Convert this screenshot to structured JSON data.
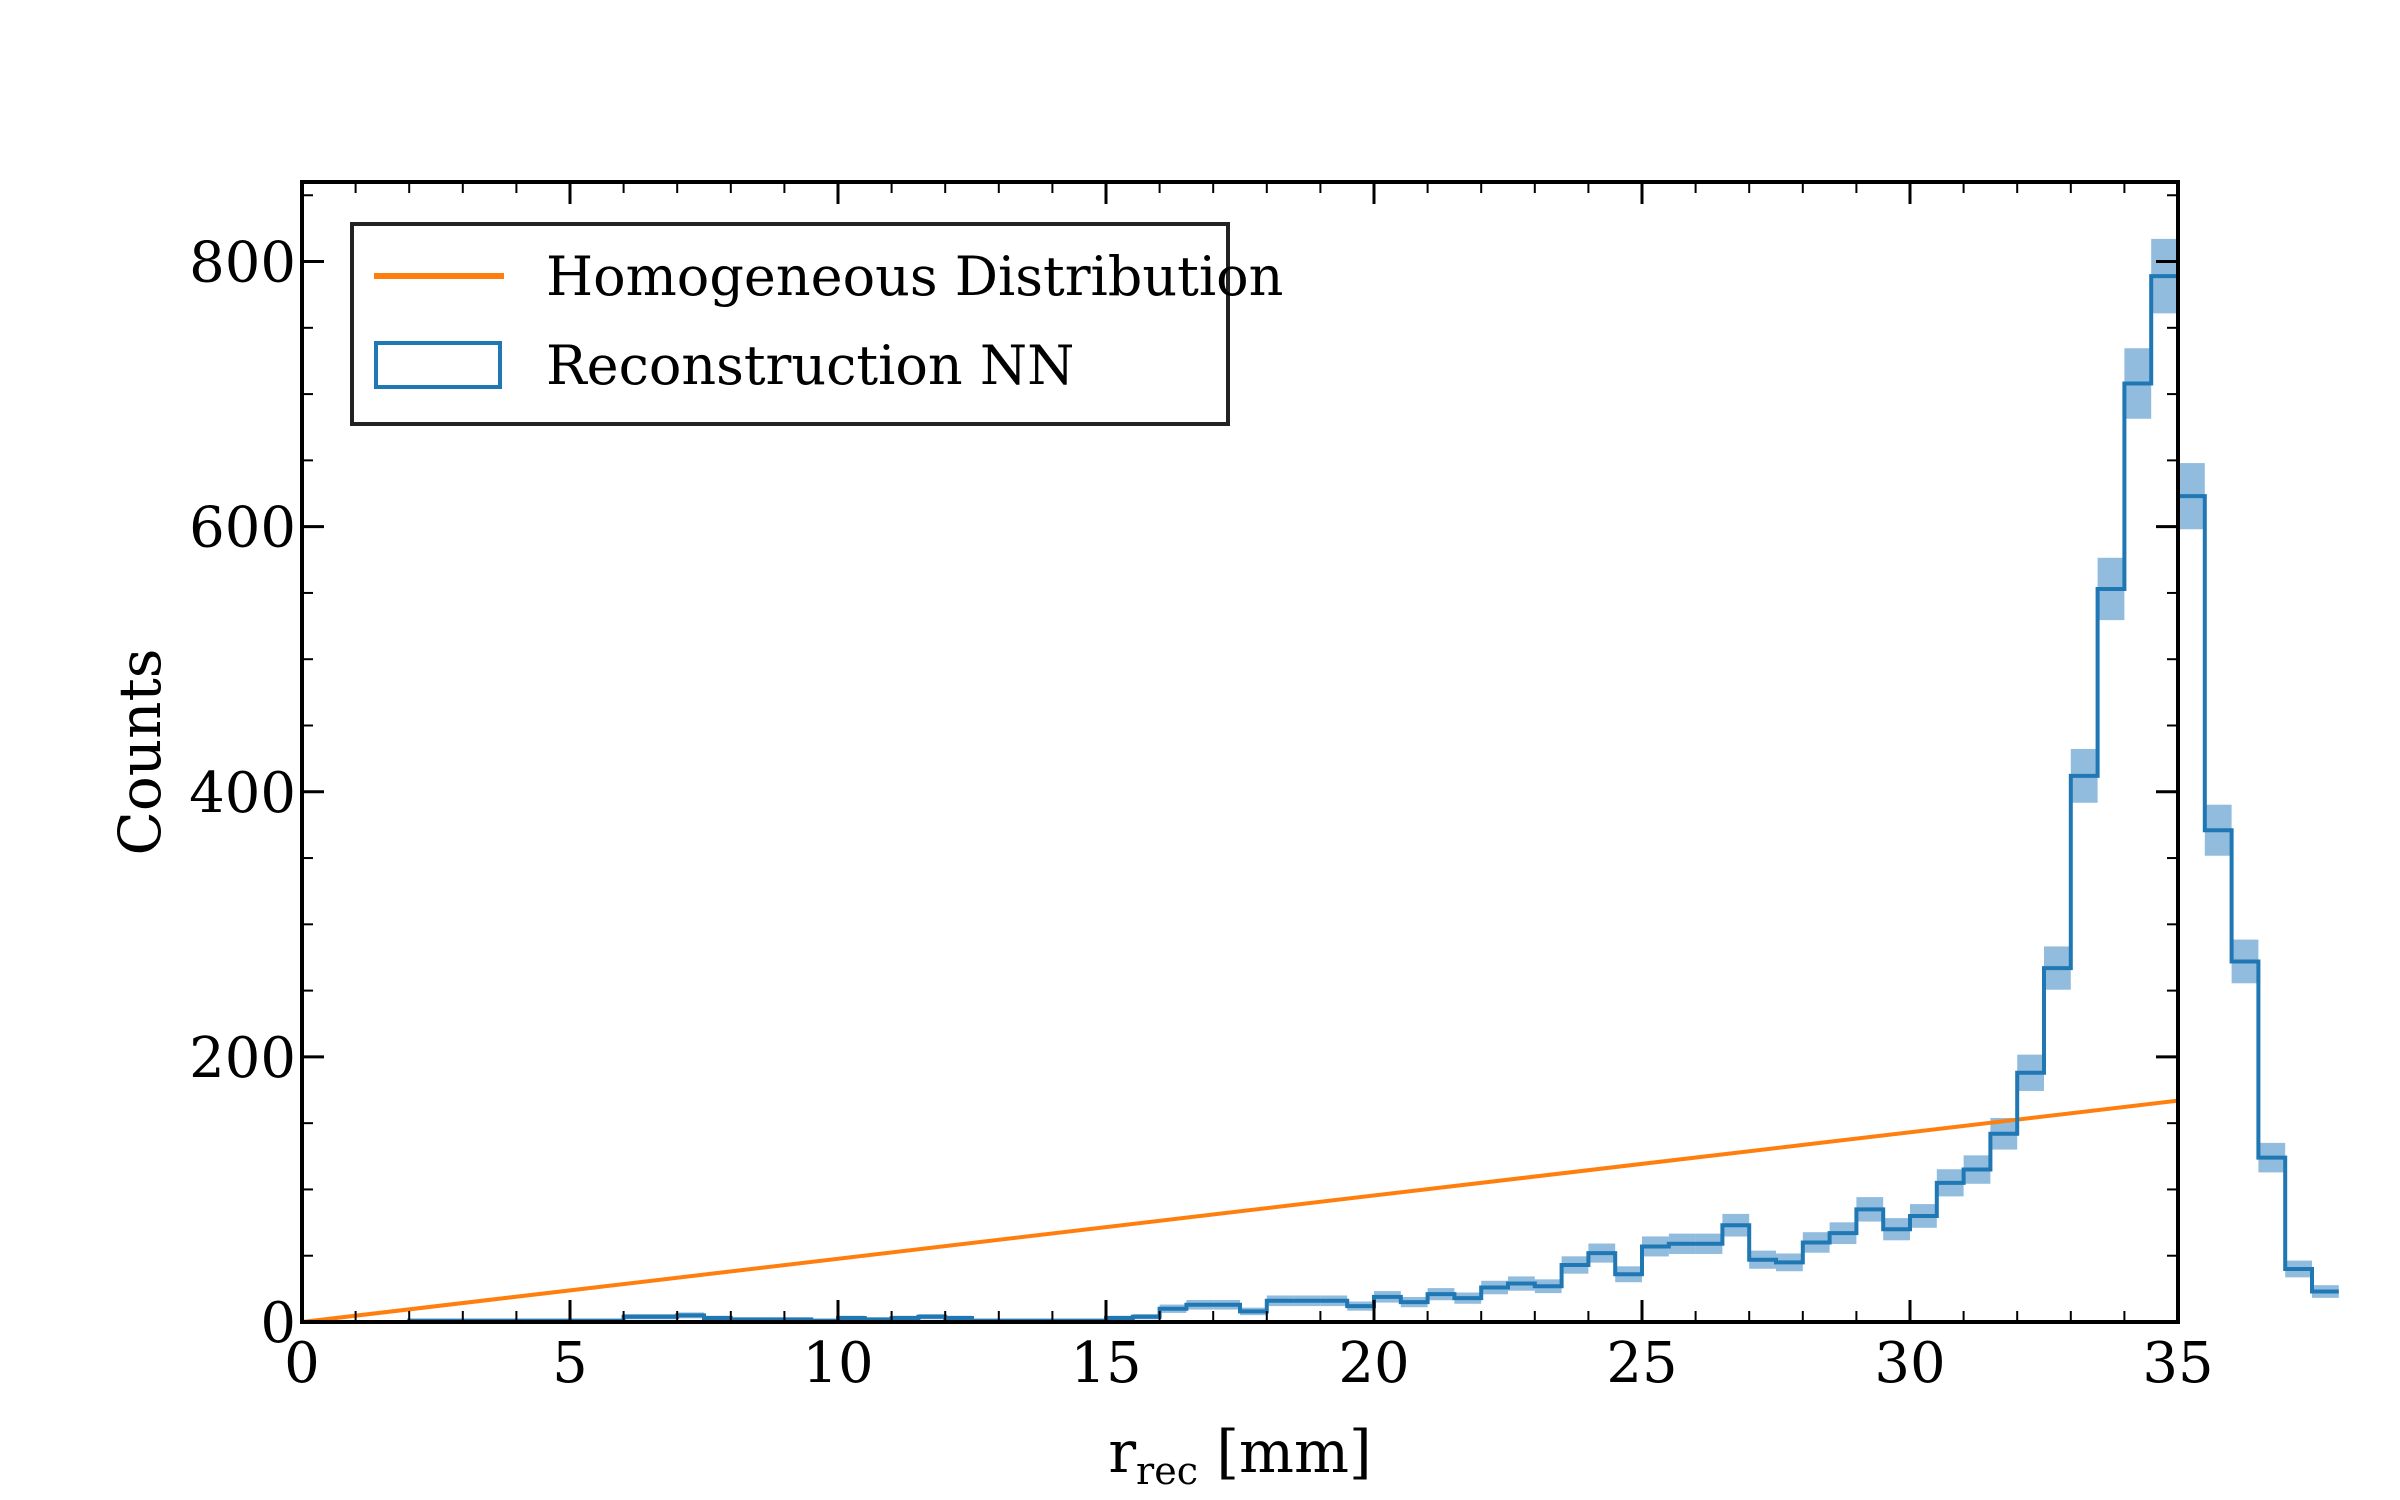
{
  "chart_data": {
    "type": "histogram",
    "title": "",
    "xlabel": "r",
    "xlabel_subscript": "rec",
    "xlabel_unit": "[mm]",
    "ylabel": "Counts",
    "xlim": [
      0,
      35
    ],
    "ylim": [
      0,
      860
    ],
    "xticks": [
      0,
      5,
      10,
      15,
      20,
      25,
      30,
      35
    ],
    "yticks": [
      0,
      200,
      400,
      600,
      800
    ],
    "grid": false,
    "legend_position": "top-left",
    "colors": {
      "homogeneous": "#ff7f0e",
      "reconstruction": "#1f77b4",
      "band": "#7fb0d8"
    },
    "legend": [
      {
        "label": "Homogeneous Distribution",
        "style": "line"
      },
      {
        "label": "Reconstruction NN",
        "style": "step"
      }
    ],
    "homogeneous_line": {
      "x": [
        0,
        35
      ],
      "y": [
        0,
        167
      ]
    },
    "histogram": {
      "bin_width": 0.5,
      "bin_start": 0,
      "counts": [
        0,
        0,
        0,
        0,
        1,
        1,
        1,
        1,
        1,
        1,
        1,
        1,
        4,
        4,
        5,
        3,
        2,
        2,
        2,
        1,
        3,
        2,
        3,
        4,
        3,
        1,
        1,
        1,
        1,
        1,
        3,
        4,
        10,
        13,
        13,
        8,
        16,
        16,
        16,
        12,
        19,
        15,
        21,
        18,
        26,
        29,
        27,
        43,
        52,
        36,
        57,
        59,
        59,
        73,
        47,
        45,
        60,
        67,
        85,
        70,
        80,
        105,
        115,
        142,
        188,
        267,
        412,
        553,
        708,
        789,
        623,
        371,
        272,
        124,
        40,
        23
      ]
    }
  }
}
